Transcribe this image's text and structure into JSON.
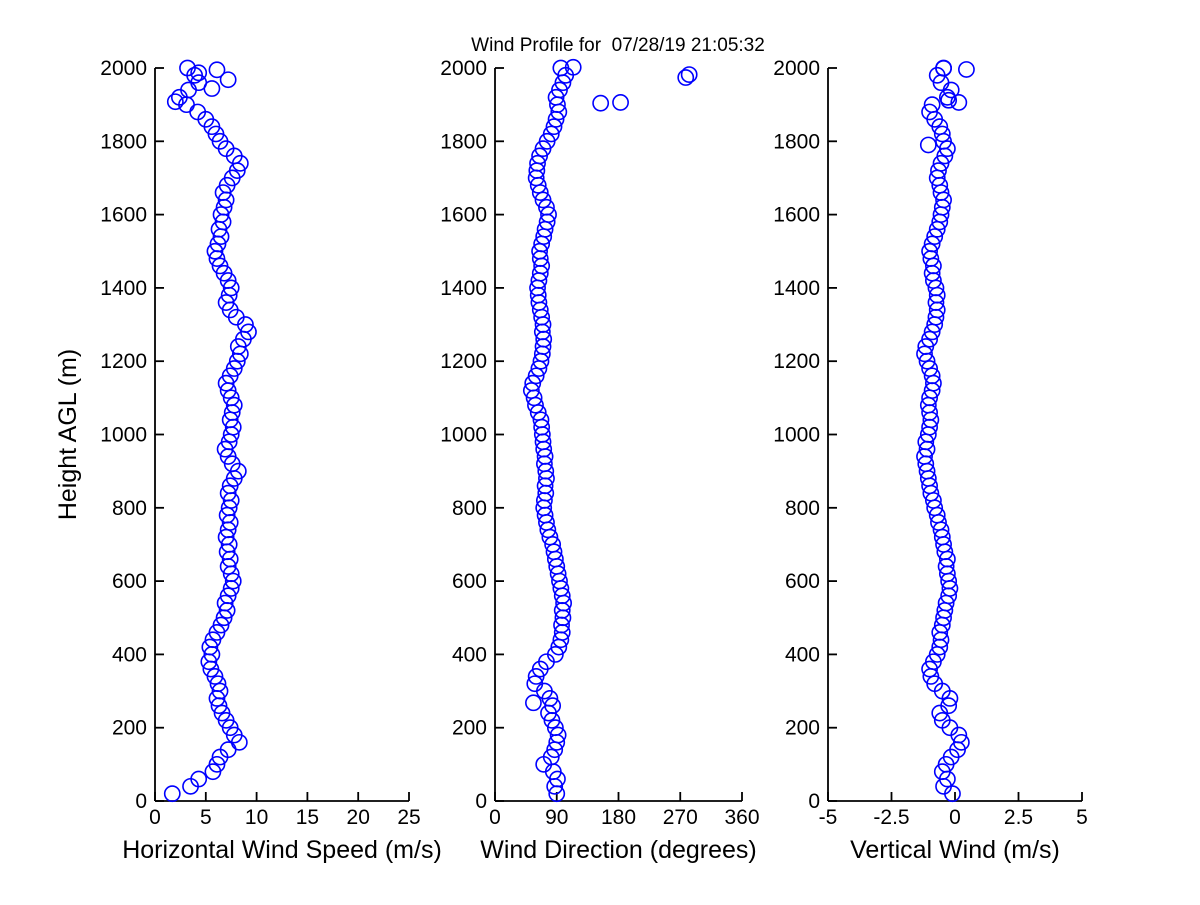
{
  "title": "Wind Profile for  07/28/19 21:05:32",
  "colors": {
    "marker": "#0000FF",
    "axis": "#000000",
    "background": "#FFFFFF"
  },
  "chart_data": [
    {
      "type": "scatter",
      "xlabel": "Horizontal Wind Speed (m/s)",
      "ylabel": "Height AGL (m)",
      "xlim": [
        0,
        25
      ],
      "xticks": [
        "0",
        "5",
        "10",
        "15",
        "20",
        "25"
      ],
      "ylim": [
        0,
        2000
      ],
      "yticks": [
        "0",
        "200",
        "400",
        "600",
        "800",
        "1000",
        "1200",
        "1400",
        "1600",
        "1800",
        "2000"
      ],
      "grid": false,
      "legend": null,
      "marker": {
        "shape": "circle",
        "filled": false,
        "color": "#0000FF"
      },
      "heights": [
        20,
        40,
        60,
        80,
        100,
        120,
        140,
        160,
        180,
        200,
        220,
        240,
        260,
        280,
        300,
        320,
        340,
        360,
        380,
        400,
        420,
        440,
        460,
        480,
        500,
        520,
        540,
        560,
        580,
        600,
        620,
        640,
        660,
        680,
        700,
        720,
        740,
        760,
        780,
        800,
        820,
        840,
        860,
        880,
        900,
        920,
        940,
        960,
        980,
        1000,
        1020,
        1040,
        1060,
        1080,
        1100,
        1120,
        1140,
        1160,
        1180,
        1200,
        1220,
        1240,
        1260,
        1280,
        1300,
        1320,
        1340,
        1360,
        1380,
        1400,
        1420,
        1440,
        1460,
        1480,
        1500,
        1520,
        1540,
        1560,
        1580,
        1600,
        1620,
        1640,
        1660,
        1680,
        1700,
        1720,
        1740,
        1760,
        1780,
        1800,
        1820,
        1840,
        1860,
        1880,
        1900,
        1920,
        1940,
        1960,
        1980,
        2000,
        1995,
        1968,
        1944,
        1908,
        1987
      ],
      "values": [
        1.7,
        3.5,
        4.3,
        5.7,
        6.1,
        6.4,
        7.2,
        8.3,
        7.8,
        7.4,
        7.0,
        6.6,
        6.3,
        6.1,
        6.4,
        6.2,
        5.9,
        5.5,
        5.3,
        5.6,
        5.4,
        5.7,
        6.1,
        6.5,
        6.8,
        7.1,
        6.9,
        7.2,
        7.5,
        7.7,
        7.5,
        7.2,
        7.4,
        7.1,
        7.3,
        7.0,
        7.2,
        7.4,
        7.1,
        7.3,
        7.5,
        7.2,
        7.4,
        7.8,
        8.2,
        7.6,
        7.2,
        6.9,
        7.3,
        7.5,
        7.7,
        7.4,
        7.6,
        7.8,
        7.5,
        7.2,
        7.0,
        7.4,
        7.8,
        8.1,
        8.4,
        8.2,
        8.7,
        9.2,
        8.9,
        8.0,
        7.4,
        7.0,
        7.3,
        7.5,
        7.2,
        6.8,
        6.4,
        6.1,
        5.9,
        6.2,
        6.5,
        6.3,
        6.7,
        6.5,
        6.8,
        7.0,
        6.7,
        7.1,
        7.6,
        8.1,
        8.4,
        7.8,
        7.0,
        6.4,
        6.0,
        5.6,
        5.0,
        4.2,
        3.1,
        2.4,
        3.3,
        4.3,
        3.9,
        3.2,
        6.1,
        7.2,
        5.6,
        2.0,
        4.3
      ]
    },
    {
      "type": "scatter",
      "xlabel": "Wind Direction (degrees)",
      "ylabel": "",
      "xlim": [
        0,
        360
      ],
      "xticks": [
        "0",
        "90",
        "180",
        "270",
        "360"
      ],
      "ylim": [
        0,
        2000
      ],
      "yticks": [
        "0",
        "200",
        "400",
        "600",
        "800",
        "1000",
        "1200",
        "1400",
        "1600",
        "1800",
        "2000"
      ],
      "grid": false,
      "legend": null,
      "marker": {
        "shape": "circle",
        "filled": false,
        "color": "#0000FF"
      },
      "heights": [
        20,
        40,
        60,
        80,
        100,
        120,
        140,
        160,
        180,
        200,
        220,
        240,
        260,
        280,
        300,
        320,
        340,
        360,
        380,
        400,
        420,
        440,
        460,
        480,
        500,
        520,
        540,
        560,
        580,
        600,
        620,
        640,
        660,
        680,
        700,
        720,
        740,
        760,
        780,
        800,
        820,
        840,
        860,
        880,
        900,
        920,
        940,
        960,
        980,
        1000,
        1020,
        1040,
        1060,
        1080,
        1100,
        1120,
        1140,
        1160,
        1180,
        1200,
        1220,
        1240,
        1260,
        1280,
        1300,
        1320,
        1340,
        1360,
        1380,
        1400,
        1420,
        1440,
        1460,
        1480,
        1500,
        1520,
        1540,
        1560,
        1580,
        1600,
        1620,
        1640,
        1660,
        1680,
        1700,
        1720,
        1740,
        1760,
        1780,
        1800,
        1820,
        1840,
        1860,
        1880,
        1900,
        1920,
        1940,
        1960,
        1980,
        2000,
        1904,
        1906,
        1974,
        1982,
        2002,
        268
      ],
      "values": [
        90,
        87,
        91,
        85,
        71,
        82,
        87,
        90,
        92,
        88,
        83,
        78,
        84,
        80,
        72,
        58,
        60,
        66,
        75,
        88,
        93,
        96,
        98,
        97,
        99,
        98,
        100,
        98,
        96,
        94,
        92,
        90,
        88,
        86,
        84,
        80,
        77,
        75,
        73,
        71,
        72,
        74,
        73,
        75,
        74,
        72,
        73,
        71,
        70,
        69,
        68,
        67,
        63,
        59,
        57,
        53,
        55,
        60,
        64,
        67,
        69,
        70,
        71,
        69,
        70,
        68,
        66,
        64,
        63,
        62,
        64,
        66,
        68,
        66,
        65,
        68,
        71,
        73,
        76,
        78,
        75,
        70,
        66,
        63,
        60,
        61,
        62,
        65,
        70,
        76,
        82,
        86,
        89,
        93,
        91,
        89,
        94,
        99,
        103,
        96,
        154,
        183,
        278,
        283,
        114,
        56
      ]
    },
    {
      "type": "scatter",
      "xlabel": "Vertical Wind (m/s)",
      "ylabel": "",
      "xlim": [
        -5,
        5
      ],
      "xticks": [
        "-5",
        "-2.5",
        "0",
        "2.5",
        "5"
      ],
      "ylim": [
        0,
        2000
      ],
      "yticks": [
        "0",
        "200",
        "400",
        "600",
        "800",
        "1000",
        "1200",
        "1400",
        "1600",
        "1800",
        "2000"
      ],
      "grid": false,
      "legend": null,
      "marker": {
        "shape": "circle",
        "filled": false,
        "color": "#0000FF"
      },
      "heights": [
        20,
        40,
        60,
        80,
        100,
        120,
        140,
        160,
        180,
        200,
        220,
        240,
        260,
        280,
        300,
        320,
        340,
        360,
        380,
        400,
        420,
        440,
        460,
        480,
        500,
        520,
        540,
        560,
        580,
        600,
        620,
        640,
        660,
        680,
        700,
        720,
        740,
        760,
        780,
        800,
        820,
        840,
        860,
        880,
        900,
        920,
        940,
        960,
        980,
        1000,
        1020,
        1040,
        1060,
        1080,
        1100,
        1120,
        1140,
        1160,
        1180,
        1200,
        1220,
        1240,
        1260,
        1280,
        1300,
        1320,
        1340,
        1360,
        1380,
        1400,
        1420,
        1440,
        1460,
        1480,
        1500,
        1520,
        1540,
        1560,
        1580,
        1600,
        1620,
        1640,
        1660,
        1680,
        1700,
        1720,
        1740,
        1760,
        1780,
        1800,
        1820,
        1840,
        1860,
        1880,
        1900,
        1920,
        1940,
        1960,
        1980,
        2000,
        1996,
        1999,
        1790,
        1906,
        1912
      ],
      "values": [
        -0.1,
        -0.45,
        -0.3,
        -0.5,
        -0.35,
        -0.15,
        0.1,
        0.25,
        0.15,
        -0.2,
        -0.5,
        -0.6,
        -0.25,
        -0.2,
        -0.5,
        -0.8,
        -0.95,
        -1.0,
        -0.85,
        -0.7,
        -0.6,
        -0.55,
        -0.6,
        -0.5,
        -0.45,
        -0.4,
        -0.35,
        -0.25,
        -0.2,
        -0.25,
        -0.3,
        -0.35,
        -0.3,
        -0.4,
        -0.45,
        -0.5,
        -0.55,
        -0.65,
        -0.7,
        -0.8,
        -0.85,
        -0.95,
        -1.0,
        -1.05,
        -1.1,
        -1.15,
        -1.2,
        -1.1,
        -1.15,
        -1.05,
        -1.0,
        -0.95,
        -1.0,
        -1.05,
        -1.0,
        -0.9,
        -0.85,
        -0.9,
        -1.0,
        -1.1,
        -1.2,
        -1.15,
        -1.0,
        -0.9,
        -0.8,
        -0.75,
        -0.7,
        -0.75,
        -0.7,
        -0.75,
        -0.85,
        -0.9,
        -0.85,
        -0.95,
        -1.0,
        -0.9,
        -0.8,
        -0.7,
        -0.6,
        -0.55,
        -0.5,
        -0.45,
        -0.55,
        -0.6,
        -0.7,
        -0.65,
        -0.55,
        -0.4,
        -0.3,
        -0.45,
        -0.5,
        -0.6,
        -0.8,
        -1.0,
        -0.9,
        -0.3,
        -0.15,
        -0.55,
        -0.7,
        -0.45,
        0.45,
        -0.45,
        -1.05,
        0.15,
        -0.25
      ]
    }
  ]
}
